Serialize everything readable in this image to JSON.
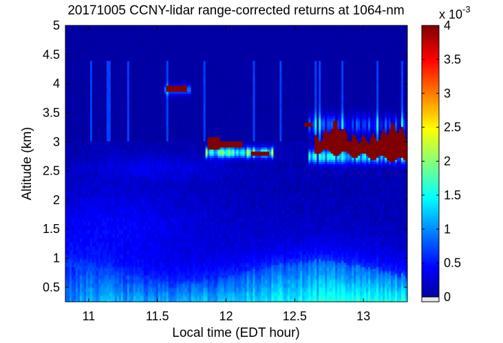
{
  "chart_data": {
    "type": "heatmap",
    "title": "20171005 CCNY-lidar range-corrected returns at 1064-nm",
    "xlabel": "Local time (EDT hour)",
    "ylabel": "Altitude (km)",
    "xlim": [
      10.83,
      13.32
    ],
    "ylim": [
      0.25,
      5
    ],
    "xticks": [
      11,
      11.5,
      12,
      12.5,
      13
    ],
    "xtick_labels": [
      "11",
      "11.5",
      "12",
      "12.5",
      "13"
    ],
    "yticks": [
      0.5,
      1,
      1.5,
      2,
      2.5,
      3,
      3.5,
      4,
      4.5,
      5
    ],
    "ytick_labels": [
      "0.5",
      "1",
      "1.5",
      "2",
      "2.5",
      "3",
      "3.5",
      "4",
      "4.5",
      "5"
    ],
    "colorbar": {
      "range": [
        0,
        0.004
      ],
      "ticks": [
        0,
        0.0005,
        0.001,
        0.0015,
        0.002,
        0.0025,
        0.003,
        0.0035,
        0.004
      ],
      "tick_labels": [
        "0",
        "0.5",
        "1",
        "1.5",
        "2",
        "2.5",
        "3",
        "3.5",
        "4"
      ],
      "exponent_label": "x 10",
      "exponent": "-3",
      "colormap": "jet"
    },
    "features": [
      {
        "name": "boundary-layer aerosol",
        "time_range": [
          10.83,
          13.32
        ],
        "altitude_range": [
          0.25,
          1.2
        ],
        "value": 0.0012
      },
      {
        "name": "elevated aerosol layer",
        "time_range": [
          10.83,
          11.9
        ],
        "altitude_range": [
          1.2,
          2.5
        ],
        "value": 0.0004
      },
      {
        "name": "cloud near 3.9 km",
        "time_range": [
          11.55,
          11.72
        ],
        "altitude_range": [
          3.85,
          3.97
        ],
        "value": 0.004
      },
      {
        "name": "cloud near 3 km",
        "time_range": [
          11.87,
          12.32
        ],
        "altitude_range": [
          2.78,
          3.08
        ],
        "value": 0.004
      },
      {
        "name": "cloud deck near 3 km",
        "time_range": [
          12.62,
          13.32
        ],
        "altitude_range": [
          2.7,
          3.4
        ],
        "value": 0.004
      }
    ]
  }
}
